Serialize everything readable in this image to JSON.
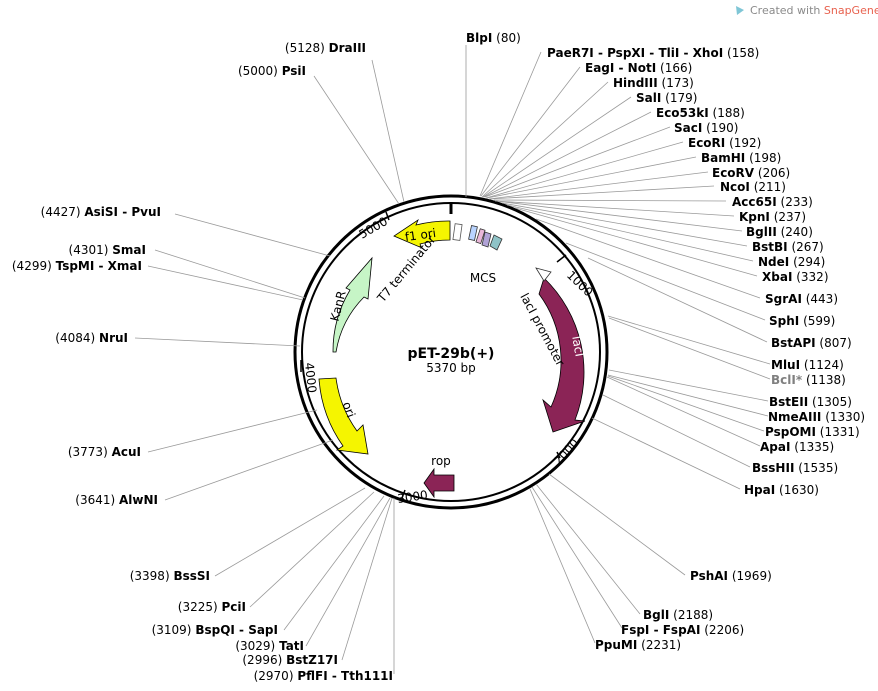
{
  "credit": {
    "prefix": "Created with ",
    "brand": "SnapGene",
    "mark": "®"
  },
  "plasmid": {
    "name": "pET-29b(+)",
    "size": "5370 bp"
  },
  "ticks": [
    "1000",
    "2000",
    "3000",
    "4000",
    "5000"
  ],
  "features": {
    "f1_ori": "f1 ori",
    "kanr": "KanR",
    "ori": "ori",
    "laci": "lacI",
    "rop": "rop",
    "t7_terminator": "T7 terminator",
    "mcs": "MCS",
    "laci_promoter": "lacI promoter"
  },
  "sites": [
    {
      "name": "DraIII",
      "pos": "(5128)"
    },
    {
      "name": "PsiI",
      "pos": "(5000)"
    },
    {
      "name": "AsiSI - PvuI",
      "pos": "(4427)"
    },
    {
      "name": "SmaI",
      "pos": "(4301)"
    },
    {
      "name": "TspMI - XmaI",
      "pos": "(4299)"
    },
    {
      "name": "NruI",
      "pos": "(4084)"
    },
    {
      "name": "AcuI",
      "pos": "(3773)"
    },
    {
      "name": "AlwNI",
      "pos": "(3641)"
    },
    {
      "name": "BssSI",
      "pos": "(3398)"
    },
    {
      "name": "PciI",
      "pos": "(3225)"
    },
    {
      "name": "BspQI - SapI",
      "pos": "(3109)"
    },
    {
      "name": "TatI",
      "pos": "(3029)"
    },
    {
      "name": "BstZ17I",
      "pos": "(2996)"
    },
    {
      "name": "PflFI - Tth111I",
      "pos": "(2970)"
    },
    {
      "name": "BlpI",
      "pos": "(80)"
    },
    {
      "name": "PaeR7I - PspXI - TliI - XhoI",
      "pos": "(158)"
    },
    {
      "name": "EagI - NotI",
      "pos": "(166)"
    },
    {
      "name": "HindIII",
      "pos": "(173)"
    },
    {
      "name": "SalI",
      "pos": "(179)"
    },
    {
      "name": "Eco53kI",
      "pos": "(188)"
    },
    {
      "name": "SacI",
      "pos": "(190)"
    },
    {
      "name": "EcoRI",
      "pos": "(192)"
    },
    {
      "name": "BamHI",
      "pos": "(198)"
    },
    {
      "name": "EcoRV",
      "pos": "(206)"
    },
    {
      "name": "NcoI",
      "pos": "(211)"
    },
    {
      "name": "Acc65I",
      "pos": "(233)"
    },
    {
      "name": "KpnI",
      "pos": "(237)"
    },
    {
      "name": "BglII",
      "pos": "(240)"
    },
    {
      "name": "BstBI",
      "pos": "(267)"
    },
    {
      "name": "NdeI",
      "pos": "(294)"
    },
    {
      "name": "XbaI",
      "pos": "(332)"
    },
    {
      "name": "SgrAI",
      "pos": "(443)"
    },
    {
      "name": "SphI",
      "pos": "(599)"
    },
    {
      "name": "BstAPI",
      "pos": "(807)"
    },
    {
      "name": "MluI",
      "pos": "(1124)"
    },
    {
      "name": "BclI*",
      "pos": "(1138)"
    },
    {
      "name": "BstEII",
      "pos": "(1305)"
    },
    {
      "name": "NmeAIII",
      "pos": "(1330)"
    },
    {
      "name": "PspOMI",
      "pos": "(1331)"
    },
    {
      "name": "ApaI",
      "pos": "(1335)"
    },
    {
      "name": "BssHII",
      "pos": "(1535)"
    },
    {
      "name": "HpaI",
      "pos": "(1630)"
    },
    {
      "name": "PshAI",
      "pos": "(1969)"
    },
    {
      "name": "BglI",
      "pos": "(2188)"
    },
    {
      "name": "FspI - FspAI",
      "pos": "(2206)"
    },
    {
      "name": "PpuMI",
      "pos": "(2231)"
    }
  ],
  "colors": {
    "backbone": "#000000",
    "ori_features": "#f5f500",
    "kanr": "#c6f5c6",
    "laci_rop": "#8b2456",
    "leader_lines": "#9a9a9a",
    "snapgene_brand": "#e8624f",
    "blocked_site": "#808080"
  }
}
